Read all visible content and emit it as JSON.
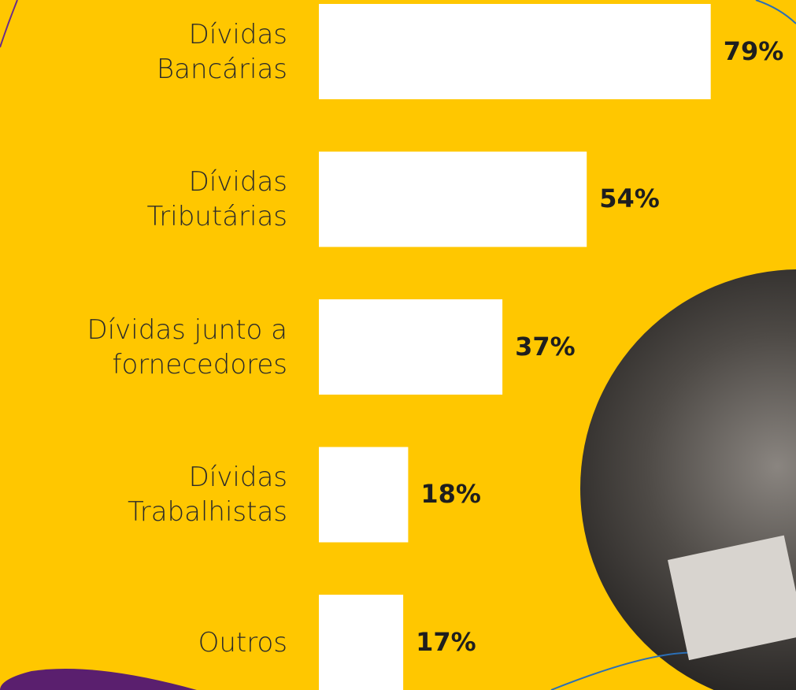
{
  "chart_data": {
    "type": "hbar",
    "categories": [
      "Dívidas\nBancárias",
      "Dívidas\nTributárias",
      "Dívidas junto a\nfornecedores",
      "Dívidas\nTrabalhistas",
      "Outros"
    ],
    "values": [
      79,
      54,
      37,
      18,
      17
    ],
    "value_labels": [
      "79%",
      "54%",
      "37%",
      "18%",
      "17%"
    ],
    "color": "#ffffff",
    "xlim": [
      0,
      80
    ]
  }
}
